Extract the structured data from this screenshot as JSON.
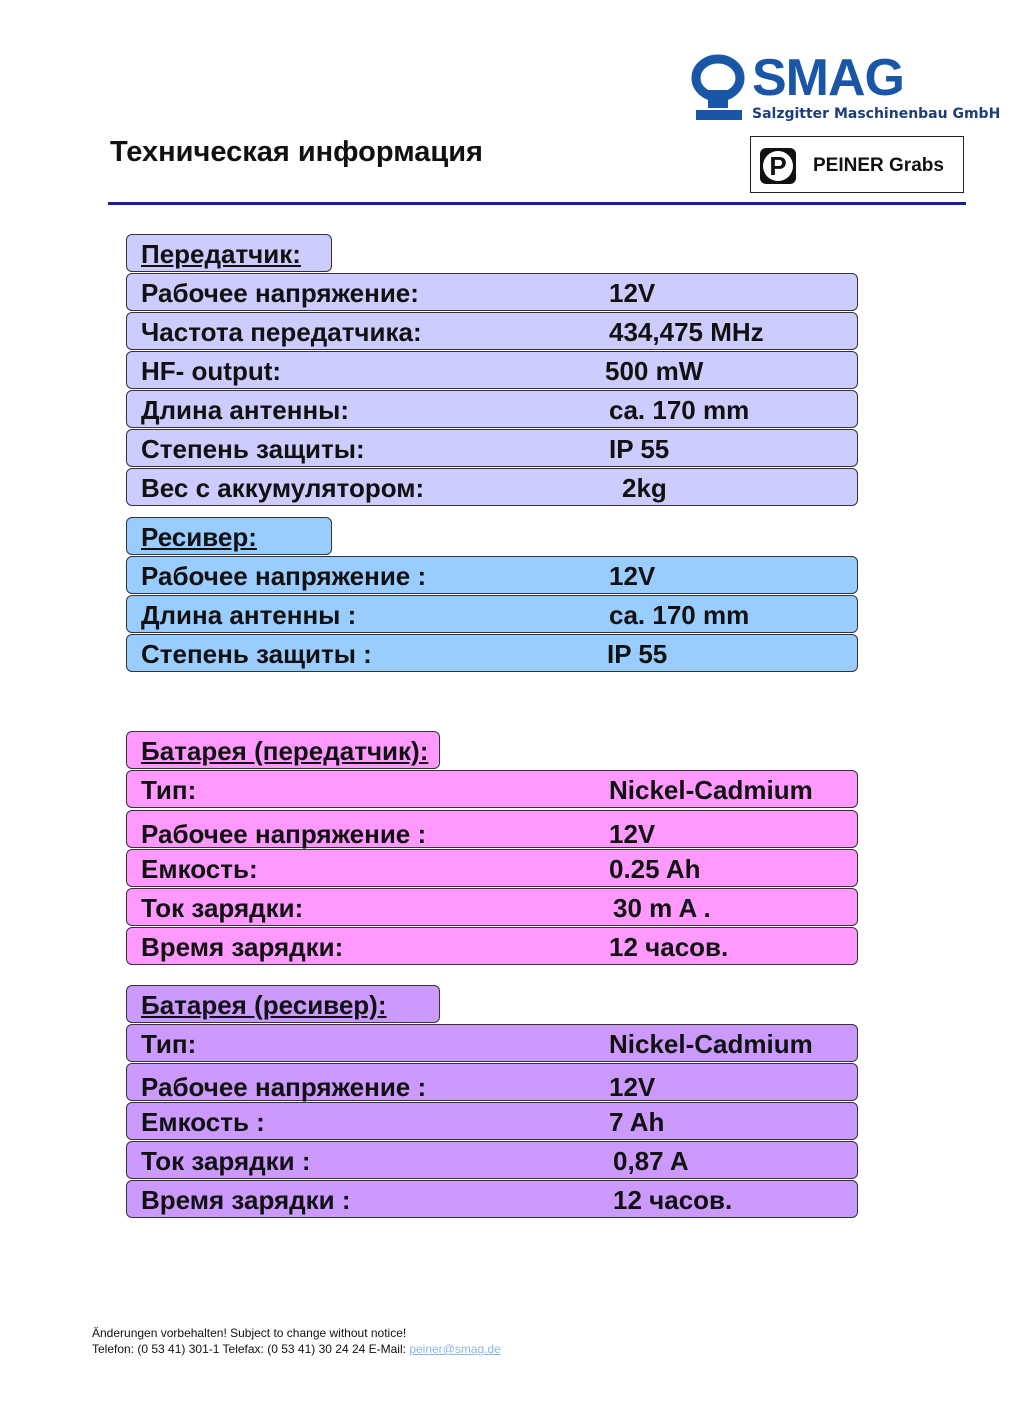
{
  "header": {
    "title": "Техническая информация",
    "logo_brand": "SMAG",
    "logo_company": "Salzgitter Maschinenbau GmbH",
    "peiner_letter": "P",
    "peiner_label": "PEINER Grabs",
    "colors": {
      "brand_blue": "#1a56a6",
      "rule": "#1d1f8a"
    }
  },
  "sections": {
    "transmitter": {
      "heading": "Передатчик:",
      "color": "#ccccff",
      "rows": [
        {
          "label": "Рабочее напряжение:",
          "value": "12V"
        },
        {
          "label": "Частота передатчика:",
          "value": "434,475 MHz"
        },
        {
          "label": "HF- output:",
          "value": "500 mW"
        },
        {
          "label": "Длина антенны:",
          "value": "ca. 170 mm"
        },
        {
          "label": "Степень защиты:",
          "value": "IP 55"
        },
        {
          "label": "Вес с аккумулятором:",
          "value": "2kg"
        }
      ]
    },
    "receiver": {
      "heading": "Ресивер:",
      "color": "#99ccff",
      "rows": [
        {
          "label": "Рабочее напряжение :",
          "value": "12V"
        },
        {
          "label": "Длина антенны :",
          "value": "ca. 170 mm"
        },
        {
          "label": "Степень защиты :",
          "value": "IP 55"
        }
      ]
    },
    "battery_transmitter": {
      "heading": "Батарея (передатчик):",
      "color": "#ff99ff",
      "rows": [
        {
          "label": "Тип:",
          "value": "Nickel-Cadmium"
        },
        {
          "label": "Рабочее напряжение :",
          "value": "12V"
        },
        {
          "label": "Емкость:",
          "value": "0.25 Ah"
        },
        {
          "label": "Ток зарядки:",
          "value": "30 m A ."
        },
        {
          "label": "Время зарядки:",
          "value": "12 часов."
        }
      ]
    },
    "battery_receiver": {
      "heading": "Батарея (ресивер):",
      "color": "#cc99ff",
      "rows": [
        {
          "label": "Тип:",
          "value": "Nickel-Cadmium"
        },
        {
          "label": "Рабочее напряжение :",
          "value": "12V"
        },
        {
          "label": "Емкость :",
          "value": "7 Ah"
        },
        {
          "label": "Ток зарядки :",
          "value": "0,87 A"
        },
        {
          "label": "Время зарядки :",
          "value": "12 часов."
        }
      ]
    }
  },
  "footer": {
    "line1": "Änderungen vorbehalten! Subject to change without notice!",
    "line2": "Telefon: (0 53 41) 301-1 Telefax: (0 53 41) 30 24 24 E-Mail: ",
    "email": "peiner@smag.de"
  }
}
